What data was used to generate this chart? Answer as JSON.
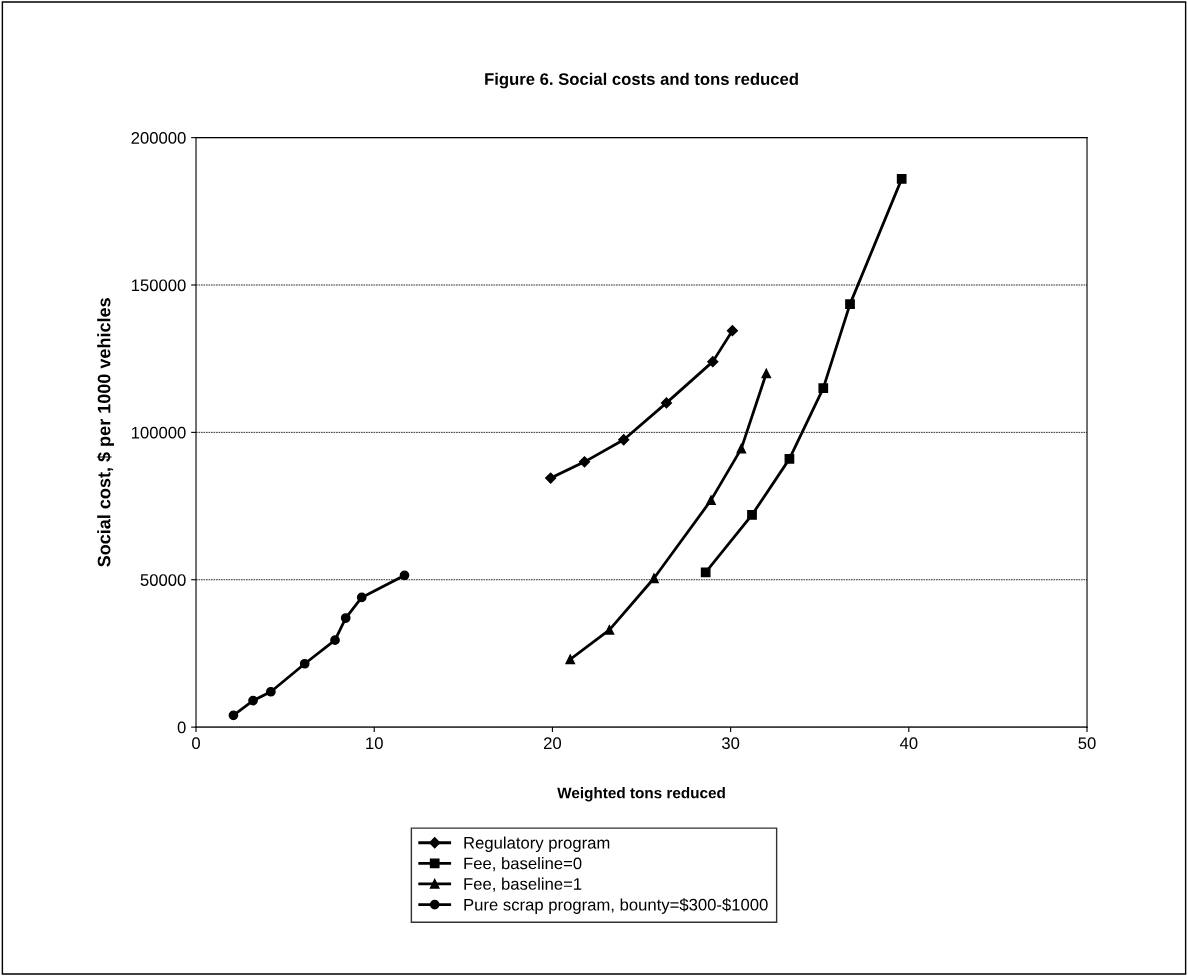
{
  "chart_data": {
    "type": "line",
    "title": "Figure 6. Social costs and tons reduced",
    "xlabel": "Weighted tons reduced",
    "ylabel": "Social cost, $ per 1000 vehicles",
    "xlim": [
      0,
      50
    ],
    "xticks": [
      0,
      10,
      20,
      30,
      40,
      50
    ],
    "ylim": [
      0,
      200000
    ],
    "yticks": [
      0,
      50000,
      100000,
      150000,
      200000
    ],
    "grid": "y",
    "legend": "bottom",
    "line_style": "solid",
    "series": [
      {
        "name": "Regulatory program",
        "color": "#000000",
        "marker": "diamond",
        "x": [
          19.9,
          21.8,
          24,
          26.4,
          29,
          30.1
        ],
        "values": [
          84500,
          90000,
          97500,
          110000,
          124000,
          134500
        ]
      },
      {
        "name": "Fee, baseline=0",
        "color": "#000000",
        "marker": "square",
        "x": [
          28.6,
          31.2,
          33.3,
          35.2,
          36.7,
          39.6
        ],
        "values": [
          52500,
          72000,
          91000,
          115000,
          143500,
          186000
        ]
      },
      {
        "name": "Fee, baseline=1",
        "color": "#000000",
        "marker": "triangle",
        "x": [
          21,
          23.2,
          25.7,
          28.9,
          30.6,
          32
        ],
        "values": [
          23000,
          33000,
          50500,
          77000,
          94500,
          120000
        ]
      },
      {
        "name": "Pure scrap program, bounty=$300-$1000",
        "color": "#000000",
        "marker": "circle",
        "x": [
          2.1,
          3.2,
          4.2,
          6.1,
          7.8,
          8.4,
          9.3,
          11.7
        ],
        "values": [
          4000,
          9000,
          12000,
          21500,
          29500,
          37000,
          44000,
          51500
        ]
      }
    ]
  }
}
